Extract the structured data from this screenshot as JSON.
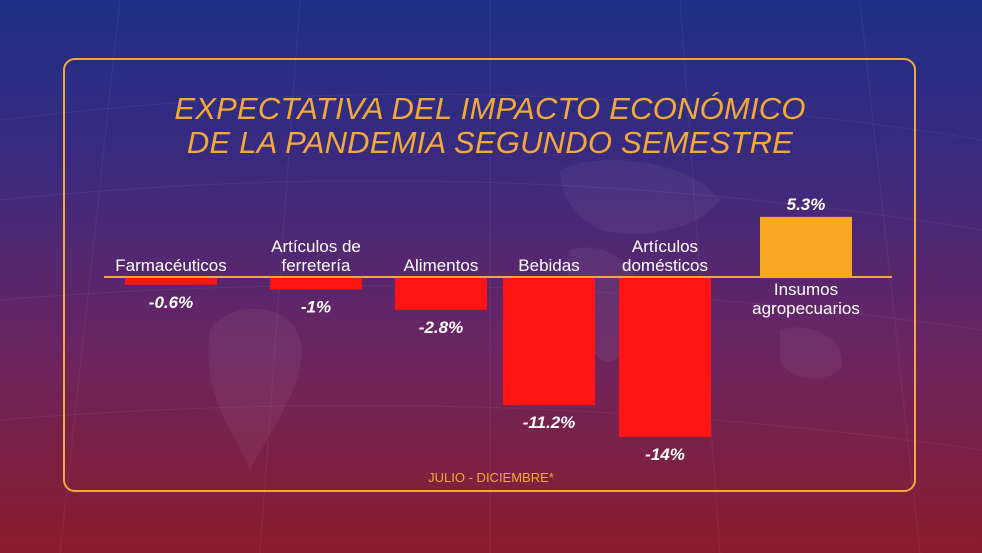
{
  "title_line1": "EXPECTATIVA DEL IMPACTO ECONÓMICO",
  "title_line2": "DE LA PANDEMIA SEGUNDO SEMESTRE",
  "footnote": "JULIO - DICIEMBRE*",
  "colors": {
    "accent": "#f2a93a",
    "negative_bar": "#ff1414",
    "positive_bar": "#f9a825",
    "text": "#ffffff"
  },
  "chart_data": {
    "type": "bar",
    "title": "EXPECTATIVA DEL IMPACTO ECONÓMICO DE LA PANDEMIA SEGUNDO SEMESTRE",
    "categories": [
      [
        "Farmacéuticos"
      ],
      [
        "Artículos de",
        "ferretería"
      ],
      [
        "Alimentos"
      ],
      [
        "Bebidas"
      ],
      [
        "Artículos",
        "domésticos"
      ],
      [
        "Insumos",
        "agropecuarios"
      ]
    ],
    "values": [
      -0.6,
      -1,
      -2.8,
      -11.2,
      -14,
      5.3
    ],
    "value_labels": [
      "-0.6%",
      "-1%",
      "-2.8%",
      "-11.2%",
      "-14%",
      "5.3%"
    ],
    "unit": "%",
    "xlabel": "",
    "ylabel": "",
    "grid": false,
    "legend": "none"
  }
}
